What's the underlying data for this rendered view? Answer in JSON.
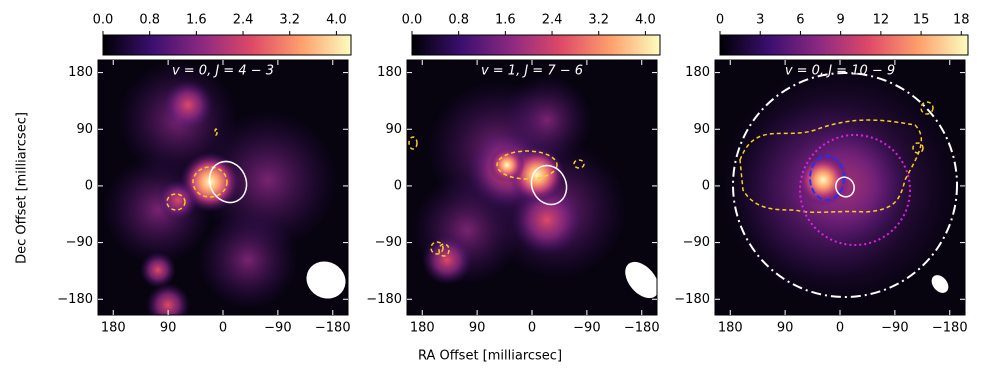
{
  "figure": {
    "xlabel": "RA Offset [milliarcsec]",
    "ylabel": "Dec Offset [milliarcsec]"
  },
  "chart_data": [
    {
      "type": "heatmap",
      "title": "v = 0, J = 4 − 3",
      "xlim": [
        205,
        -205
      ],
      "ylim": [
        -205,
        200
      ],
      "xticks": [
        180,
        90,
        0,
        {
          "value": -90,
          "label": "−90"
        },
        {
          "value": -180,
          "label": "−180"
        }
      ],
      "yticks": [
        180,
        90,
        0,
        {
          "value": -90,
          "label": "−90"
        },
        {
          "value": -180,
          "label": "−180"
        }
      ],
      "colorbar": {
        "lim": [
          0,
          4.25
        ],
        "ticks": [
          {
            "value": 0,
            "label": "0.0"
          },
          0.8,
          1.6,
          2.4,
          3.2,
          {
            "value": 4,
            "label": "4.0"
          }
        ]
      }
    },
    {
      "type": "heatmap",
      "title": "v = 1, J = 7 − 6",
      "xlim": [
        205,
        -205
      ],
      "ylim": [
        -205,
        200
      ],
      "xticks": [
        180,
        90,
        0,
        {
          "value": -90,
          "label": "−90"
        },
        {
          "value": -180,
          "label": "−180"
        }
      ],
      "yticks": [
        180,
        90,
        0,
        {
          "value": -90,
          "label": "−90"
        },
        {
          "value": -180,
          "label": "−180"
        }
      ],
      "colorbar": {
        "lim": [
          0,
          4.25
        ],
        "ticks": [
          {
            "value": 0,
            "label": "0.0"
          },
          0.8,
          1.6,
          2.4,
          3.2,
          {
            "value": 4,
            "label": "4.0"
          }
        ]
      }
    },
    {
      "type": "heatmap",
      "title": "v = 0, J = 10 − 9",
      "xlim": [
        205,
        -205
      ],
      "ylim": [
        -205,
        200
      ],
      "xticks": [
        180,
        90,
        0,
        {
          "value": -90,
          "label": "−90"
        },
        {
          "value": -180,
          "label": "−180"
        }
      ],
      "yticks": [
        180,
        90,
        0,
        {
          "value": -90,
          "label": "−90"
        },
        {
          "value": -180,
          "label": "−180"
        }
      ],
      "colorbar": {
        "lim": [
          0,
          18.5
        ],
        "ticks": [
          0,
          3,
          6,
          9,
          12,
          15,
          18
        ]
      }
    }
  ]
}
